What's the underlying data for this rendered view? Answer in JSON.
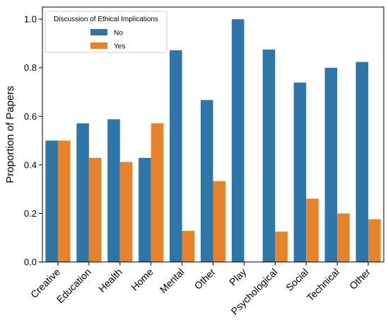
{
  "chart_data": {
    "type": "bar",
    "ylabel": "Proportion of Papers",
    "xlabel": "",
    "ylim": [
      0,
      1.05
    ],
    "yticks": [
      "0.0",
      "0.2",
      "0.4",
      "0.6",
      "0.8",
      "1.0"
    ],
    "categories": [
      "Creative",
      "Education",
      "Health",
      "Home",
      "Mental",
      "Other",
      "Play",
      "Psychological",
      "Social",
      "Technical",
      "Other"
    ],
    "series": [
      {
        "name": "No",
        "color": "#2e75a8",
        "values": [
          0.5,
          0.571,
          0.588,
          0.429,
          0.872,
          0.667,
          1.0,
          0.875,
          0.739,
          0.8,
          0.824
        ]
      },
      {
        "name": "Yes",
        "color": "#e6822b",
        "values": [
          0.5,
          0.429,
          0.412,
          0.571,
          0.128,
          0.333,
          0.0,
          0.125,
          0.261,
          0.2,
          0.176
        ]
      }
    ],
    "legend": {
      "title": "Discussion of Ethical Implications",
      "position": "top-left"
    },
    "grid": false
  }
}
